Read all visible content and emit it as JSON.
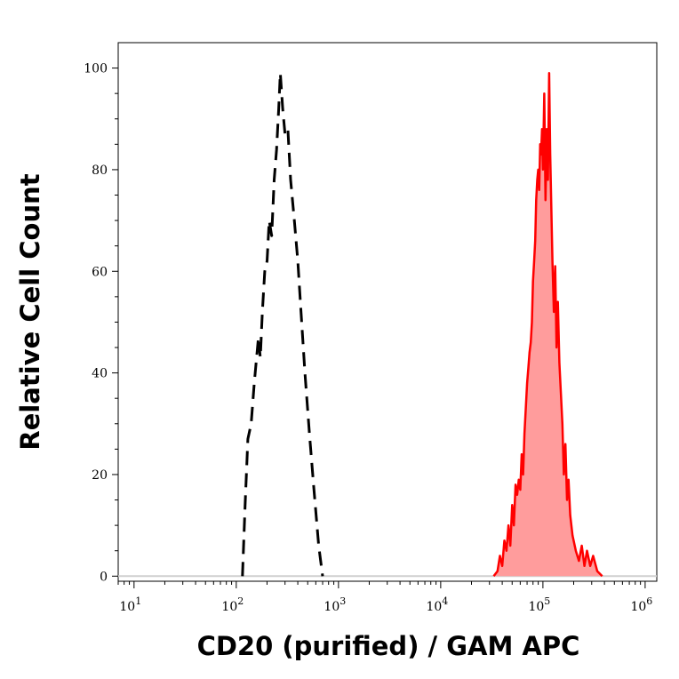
{
  "chart_data": {
    "type": "area",
    "title": "",
    "xlabel": "CD20 (purified) / GAM APC",
    "ylabel": "Relative Cell Count",
    "x_scale": "log",
    "xlim": [
      7,
      1300000
    ],
    "ylim": [
      -1,
      105
    ],
    "x_ticks": [
      {
        "value": 10,
        "base": "10",
        "exp": "1"
      },
      {
        "value": 100,
        "base": "10",
        "exp": "2"
      },
      {
        "value": 1000,
        "base": "10",
        "exp": "3"
      },
      {
        "value": 10000,
        "base": "10",
        "exp": "4"
      },
      {
        "value": 100000,
        "base": "10",
        "exp": "5"
      },
      {
        "value": 1000000,
        "base": "10",
        "exp": "6"
      }
    ],
    "y_ticks": [
      {
        "value": 0,
        "label": "0"
      },
      {
        "value": 20,
        "label": "20"
      },
      {
        "value": 40,
        "label": "40"
      },
      {
        "value": 60,
        "label": "60"
      },
      {
        "value": 80,
        "label": "80"
      },
      {
        "value": 100,
        "label": "100"
      }
    ],
    "grid": false,
    "legend": "none",
    "colors": {
      "stained_line": "#ff0000",
      "stained_fill": "#ff9c9c",
      "control_line": "#000000",
      "baseline": "#d0d0d0"
    },
    "series": [
      {
        "style": "dashed-black",
        "points": [
          [
            115,
            0
          ],
          [
            122,
            14
          ],
          [
            130,
            27
          ],
          [
            140,
            30
          ],
          [
            150,
            38
          ],
          [
            158,
            43
          ],
          [
            165,
            47
          ],
          [
            172,
            43
          ],
          [
            180,
            52
          ],
          [
            190,
            60
          ],
          [
            200,
            62
          ],
          [
            210,
            70
          ],
          [
            222,
            67
          ],
          [
            235,
            78
          ],
          [
            248,
            84
          ],
          [
            260,
            92
          ],
          [
            270,
            99
          ],
          [
            285,
            92
          ],
          [
            300,
            87
          ],
          [
            320,
            88
          ],
          [
            340,
            78
          ],
          [
            370,
            70
          ],
          [
            400,
            62
          ],
          [
            430,
            52
          ],
          [
            470,
            40
          ],
          [
            520,
            28
          ],
          [
            570,
            18
          ],
          [
            640,
            6
          ],
          [
            700,
            0
          ]
        ]
      },
      {
        "style": "red-filled",
        "points": [
          [
            33000,
            0
          ],
          [
            36000,
            1
          ],
          [
            38000,
            4
          ],
          [
            40000,
            2
          ],
          [
            42000,
            7
          ],
          [
            44000,
            5
          ],
          [
            46000,
            10
          ],
          [
            48000,
            6
          ],
          [
            50000,
            14
          ],
          [
            52000,
            10
          ],
          [
            54000,
            18
          ],
          [
            56000,
            16
          ],
          [
            58000,
            19
          ],
          [
            60000,
            17
          ],
          [
            62000,
            24
          ],
          [
            64000,
            20
          ],
          [
            66000,
            28
          ],
          [
            68000,
            33
          ],
          [
            70000,
            38
          ],
          [
            72000,
            41
          ],
          [
            74000,
            44
          ],
          [
            76000,
            46
          ],
          [
            78000,
            50
          ],
          [
            80000,
            58
          ],
          [
            82000,
            62
          ],
          [
            84000,
            66
          ],
          [
            86000,
            74
          ],
          [
            88000,
            78
          ],
          [
            90000,
            80
          ],
          [
            92000,
            76
          ],
          [
            94000,
            85
          ],
          [
            96000,
            83
          ],
          [
            98000,
            88
          ],
          [
            100000,
            80
          ],
          [
            103000,
            95
          ],
          [
            106000,
            74
          ],
          [
            109000,
            88
          ],
          [
            112000,
            78
          ],
          [
            115000,
            99
          ],
          [
            118000,
            83
          ],
          [
            121000,
            72
          ],
          [
            124000,
            62
          ],
          [
            128000,
            52
          ],
          [
            132000,
            61
          ],
          [
            136000,
            45
          ],
          [
            140000,
            54
          ],
          [
            145000,
            42
          ],
          [
            150000,
            36
          ],
          [
            155000,
            30
          ],
          [
            160000,
            20
          ],
          [
            166000,
            26
          ],
          [
            172000,
            15
          ],
          [
            178000,
            19
          ],
          [
            185000,
            12
          ],
          [
            195000,
            8
          ],
          [
            210000,
            5
          ],
          [
            225000,
            3
          ],
          [
            240000,
            6
          ],
          [
            255000,
            2
          ],
          [
            270000,
            5
          ],
          [
            290000,
            2
          ],
          [
            310000,
            4
          ],
          [
            340000,
            1
          ],
          [
            380000,
            0
          ]
        ]
      }
    ]
  }
}
